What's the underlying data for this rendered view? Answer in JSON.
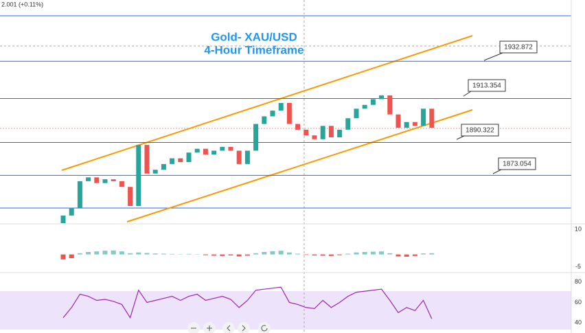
{
  "header": {
    "quote": "2.001 (+0.11%)"
  },
  "chart_data": [
    {
      "type": "candlestick",
      "title": "Gold- XAU/USD",
      "subtitle": "4-Hour Timeframe",
      "ylim": [
        1848,
        1965
      ],
      "up_color": "#26a69a",
      "down_color": "#ef5350",
      "levels": [
        1932.872,
        1913.354,
        1890.322,
        1873.054
      ],
      "level_color": "#2962ff",
      "open": [
        1848,
        1852,
        1856,
        1870,
        1872,
        1869,
        1871,
        1870,
        1867,
        1857,
        1889,
        1874,
        1876,
        1879,
        1882,
        1880,
        1885,
        1887,
        1884,
        1886,
        1888,
        1886,
        1879,
        1886,
        1900,
        1904,
        1907,
        1911,
        1900,
        1897,
        1894,
        1892,
        1899,
        1893,
        1897,
        1903,
        1908,
        1910,
        1913,
        1915,
        1905,
        1898,
        1901,
        1899,
        1908
      ],
      "close": [
        1852,
        1856,
        1870,
        1872,
        1869,
        1871,
        1870,
        1867,
        1857,
        1889,
        1874,
        1876,
        1879,
        1882,
        1880,
        1885,
        1887,
        1884,
        1886,
        1888,
        1886,
        1879,
        1886,
        1900,
        1904,
        1907,
        1911,
        1900,
        1897,
        1894,
        1892,
        1899,
        1893,
        1897,
        1903,
        1908,
        1910,
        1913,
        1915,
        1905,
        1898,
        1901,
        1899,
        1908,
        1898
      ]
    },
    {
      "type": "histogram",
      "ylim": [
        12,
        -7
      ],
      "yticks": [
        10,
        -5
      ],
      "up_color": "#80cbc4",
      "down_color": "#ef5350",
      "values": [
        -2,
        -1.5,
        0.5,
        1,
        1.2,
        1.5,
        1.6,
        1.2,
        0.5,
        0.8,
        0.6,
        0.4,
        0.3,
        0.2,
        0.1,
        0.2,
        0.1,
        -0.3,
        -0.5,
        -0.6,
        -0.4,
        -0.8,
        -0.5,
        0.5,
        1,
        1.3,
        1.5,
        0.8,
        0.3,
        -0.2,
        -0.4,
        -0.5,
        -0.6,
        -0.3,
        0.3,
        0.8,
        1,
        1.1,
        1.2,
        0.5,
        -0.8,
        -0.9,
        -0.6,
        0.4,
        0.5
      ]
    },
    {
      "type": "line",
      "ylim": [
        88.6,
        30
      ],
      "yticks": [
        80,
        60,
        40
      ],
      "color": "#9c27b0",
      "values": [
        45,
        55,
        68,
        66,
        62,
        63,
        61,
        58,
        45,
        72,
        60,
        62,
        64,
        66,
        62,
        66,
        68,
        62,
        64,
        66,
        63,
        55,
        62,
        72,
        73,
        74,
        75,
        60,
        58,
        55,
        54,
        62,
        55,
        60,
        66,
        70,
        71,
        72,
        73,
        62,
        50,
        55,
        52,
        62,
        44
      ]
    }
  ]
}
